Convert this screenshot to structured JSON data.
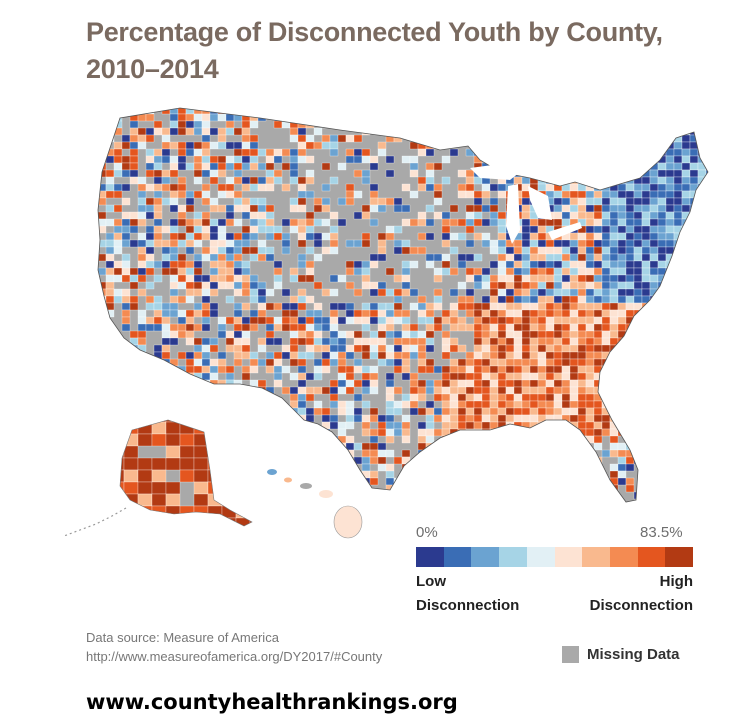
{
  "title": {
    "line1": "Percentage of Disconnected Youth by County,",
    "line2": "2010–2014"
  },
  "legend": {
    "min_label": "0%",
    "max_label": "83.5%",
    "low_line1": "Low",
    "low_line2": "Disconnection",
    "high_line1": "High",
    "high_line2": "Disconnection",
    "colors": [
      "#2b3a8f",
      "#3a6db5",
      "#6ba3d1",
      "#a6d4e6",
      "#e2f0f5",
      "#fde3d3",
      "#f9b98e",
      "#f48b52",
      "#e4561f",
      "#b23a13"
    ],
    "missing_label": "Missing Data",
    "missing_color": "#a9a9a9"
  },
  "source": {
    "line1": "Data source: Measure of America",
    "line2": "http://www.measureofamerica.org/DY2017/#County"
  },
  "website": "www.countyhealthrankings.org"
}
